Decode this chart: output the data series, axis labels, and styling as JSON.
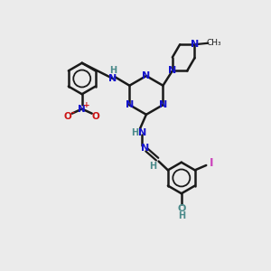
{
  "background_color": "#ebebeb",
  "bond_color": "#1a1a1a",
  "n_color": "#1414cc",
  "o_color": "#cc1414",
  "i_color": "#cc44bb",
  "nh_color": "#4a8a8a",
  "figsize": [
    3.0,
    3.0
  ],
  "dpi": 100,
  "xlim": [
    0,
    10
  ],
  "ylim": [
    0,
    10
  ]
}
